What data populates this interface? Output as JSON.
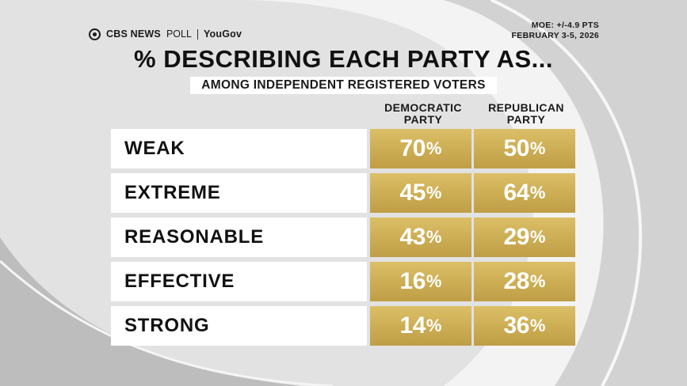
{
  "brand": {
    "network": "CBS NEWS",
    "poll": "POLL",
    "partner": "YouGov"
  },
  "moe": "MOE: +/-4.9 PTS",
  "date": "FEBRUARY 3-5, 2026",
  "colors": {
    "gold": "#c9a94f",
    "label_bg": "#ffffff",
    "text": "#111111"
  },
  "chart_data": {
    "type": "table",
    "title": "% DESCRIBING EACH PARTY AS...",
    "subtitle": "AMONG INDEPENDENT REGISTERED VOTERS",
    "columns": [
      {
        "line1": "DEMOCRATIC",
        "line2": "PARTY"
      },
      {
        "line1": "REPUBLICAN",
        "line2": "PARTY"
      }
    ],
    "unit": "%",
    "rows": [
      {
        "label": "WEAK",
        "values": [
          70,
          50
        ]
      },
      {
        "label": "EXTREME",
        "values": [
          45,
          64
        ]
      },
      {
        "label": "REASONABLE",
        "values": [
          43,
          29
        ]
      },
      {
        "label": "EFFECTIVE",
        "values": [
          16,
          28
        ]
      },
      {
        "label": "STRONG",
        "values": [
          14,
          36
        ]
      }
    ]
  }
}
